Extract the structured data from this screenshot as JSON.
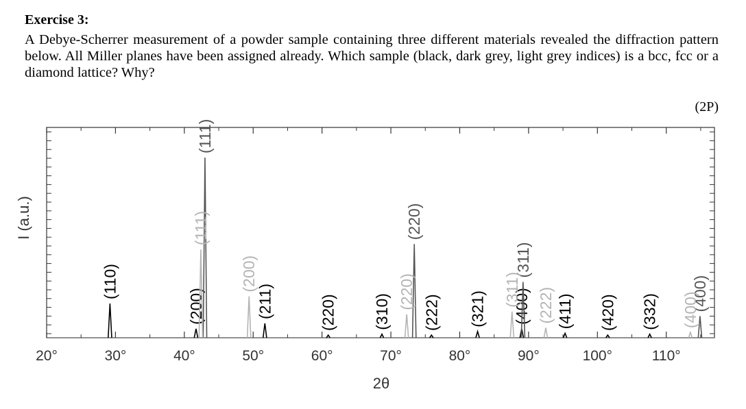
{
  "exercise": {
    "title": "Exercise 3:",
    "text": "A Debye-Scherrer measurement of a powder sample containing three different materials revealed the diffraction pattern below. All Miller planes have been assigned already. Which sample (black, dark grey, light grey indices) is a bcc, fcc or a diamond lattice? Why?",
    "points": "(2P)"
  },
  "colors": {
    "black": "#000000",
    "dark_grey": "#555555",
    "light_grey": "#b4b4b4"
  },
  "chart_data": {
    "type": "line",
    "title": "",
    "xlabel": "2θ",
    "ylabel": "I (a.u.)",
    "xlim": [
      20,
      117
    ],
    "ylim": [
      0,
      100
    ],
    "x_ticks": [
      "20°",
      "30°",
      "40°",
      "50°",
      "60°",
      "70°",
      "80°",
      "90°",
      "100°",
      "110°"
    ],
    "x_tick_values": [
      20,
      30,
      40,
      50,
      60,
      70,
      80,
      90,
      100,
      110
    ],
    "series": [
      {
        "name": "black",
        "color": "#000000",
        "peaks": [
          {
            "x": 29.2,
            "y": 19,
            "label": "(110)"
          },
          {
            "x": 41.7,
            "y": 5,
            "label": "(200)"
          },
          {
            "x": 51.7,
            "y": 8,
            "label": "(211)"
          },
          {
            "x": 60.9,
            "y": 1.5,
            "label": "(220)"
          },
          {
            "x": 68.7,
            "y": 2,
            "label": "(310)"
          },
          {
            "x": 75.9,
            "y": 1.5,
            "label": "(222)"
          },
          {
            "x": 82.6,
            "y": 3.5,
            "label": "(321)"
          },
          {
            "x": 89.0,
            "y": 5,
            "label": "(400)"
          },
          {
            "x": 95.3,
            "y": 2.5,
            "label": "(411)"
          },
          {
            "x": 101.5,
            "y": 1.5,
            "label": "(420)"
          },
          {
            "x": 107.6,
            "y": 2,
            "label": "(332)"
          }
        ]
      },
      {
        "name": "dark grey",
        "color": "#555555",
        "peaks": [
          {
            "x": 43.0,
            "y": 100,
            "label": "(111)"
          },
          {
            "x": 73.4,
            "y": 52,
            "label": "(220)"
          },
          {
            "x": 89.2,
            "y": 31,
            "label": "(311)"
          },
          {
            "x": 114.9,
            "y": 12,
            "label": "(400)"
          }
        ]
      },
      {
        "name": "light grey",
        "color": "#b4b4b4",
        "peaks": [
          {
            "x": 42.4,
            "y": 49,
            "label": "(111)"
          },
          {
            "x": 49.4,
            "y": 23,
            "label": "(200)"
          },
          {
            "x": 72.3,
            "y": 13,
            "label": "(220)"
          },
          {
            "x": 87.6,
            "y": 14.5,
            "label": "(311)"
          },
          {
            "x": 92.5,
            "y": 5.5,
            "label": "(222)"
          },
          {
            "x": 113.5,
            "y": 3,
            "label": "(400)"
          }
        ]
      }
    ]
  }
}
